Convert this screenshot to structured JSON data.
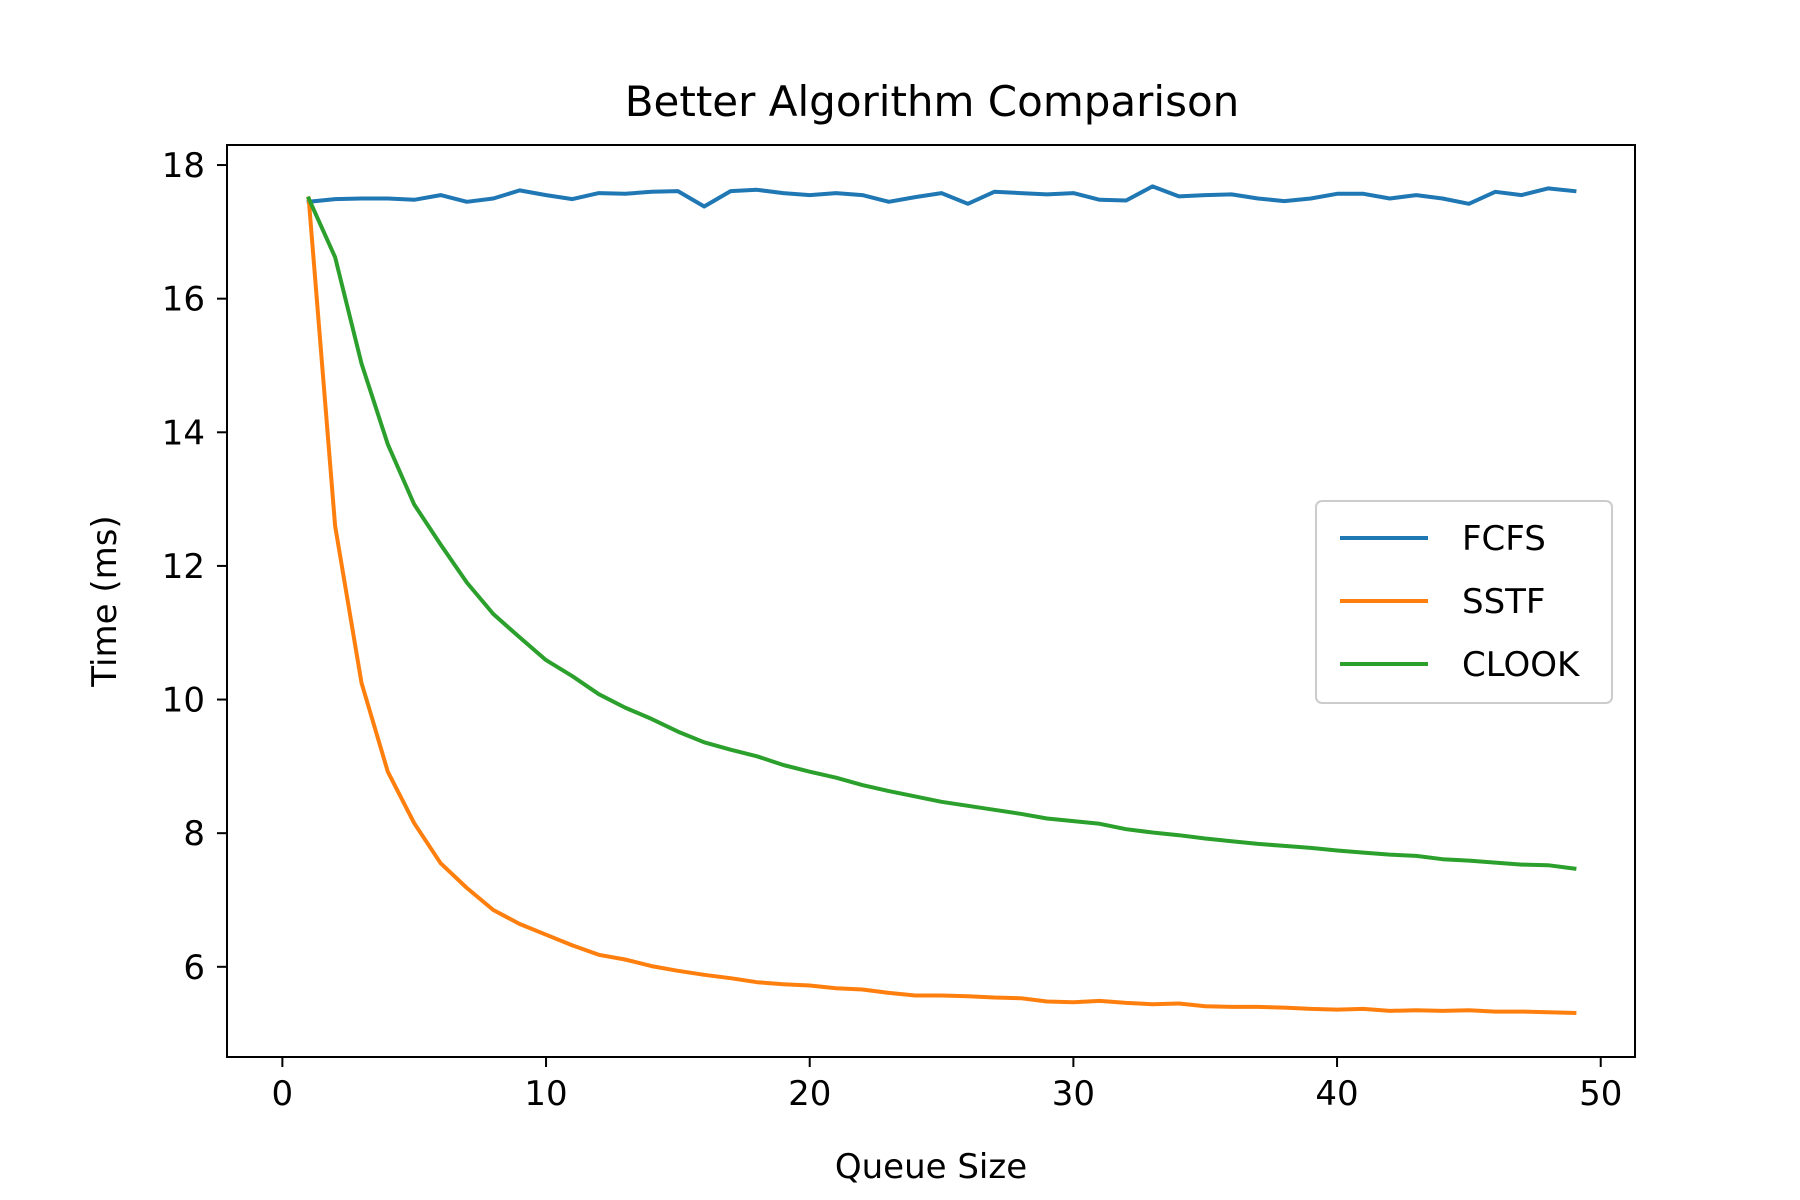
{
  "chart_data": {
    "type": "line",
    "title": "Better Algorithm Comparison",
    "xlabel": "Queue Size",
    "ylabel": "Time (ms)",
    "xlim": [
      -2.1,
      51.3
    ],
    "ylim": [
      4.65,
      18.3
    ],
    "xticks": [
      0,
      10,
      20,
      30,
      40,
      50
    ],
    "yticks": [
      6,
      8,
      10,
      12,
      14,
      16,
      18
    ],
    "grid": false,
    "legend_position": "center-right",
    "x": [
      1,
      2,
      3,
      4,
      5,
      6,
      7,
      8,
      9,
      10,
      11,
      12,
      13,
      14,
      15,
      16,
      17,
      18,
      19,
      20,
      21,
      22,
      23,
      24,
      25,
      26,
      27,
      28,
      29,
      30,
      31,
      32,
      33,
      34,
      35,
      36,
      37,
      38,
      39,
      40,
      41,
      42,
      43,
      44,
      45,
      46,
      47,
      48,
      49
    ],
    "series": [
      {
        "name": "FCFS",
        "color": "#1f77b4",
        "values": [
          17.45,
          17.49,
          17.5,
          17.5,
          17.48,
          17.55,
          17.45,
          17.5,
          17.62,
          17.55,
          17.49,
          17.58,
          17.57,
          17.6,
          17.61,
          17.38,
          17.61,
          17.63,
          17.58,
          17.55,
          17.58,
          17.55,
          17.45,
          17.52,
          17.58,
          17.42,
          17.6,
          17.58,
          17.56,
          17.58,
          17.48,
          17.47,
          17.68,
          17.53,
          17.55,
          17.56,
          17.5,
          17.46,
          17.5,
          17.57,
          17.57,
          17.5,
          17.55,
          17.5,
          17.42,
          17.6,
          17.55,
          17.65,
          17.61
        ]
      },
      {
        "name": "SSTF",
        "color": "#ff7f0e",
        "values": [
          17.5,
          12.6,
          10.25,
          8.92,
          8.15,
          7.55,
          7.18,
          6.85,
          6.64,
          6.48,
          6.32,
          6.18,
          6.11,
          6.01,
          5.94,
          5.88,
          5.83,
          5.77,
          5.74,
          5.72,
          5.68,
          5.66,
          5.61,
          5.57,
          5.57,
          5.56,
          5.54,
          5.53,
          5.48,
          5.47,
          5.49,
          5.46,
          5.44,
          5.45,
          5.41,
          5.4,
          5.4,
          5.39,
          5.37,
          5.36,
          5.37,
          5.34,
          5.35,
          5.34,
          5.35,
          5.33,
          5.33,
          5.32,
          5.31
        ]
      },
      {
        "name": "CLOOK",
        "color": "#2ca02c",
        "values": [
          17.5,
          16.62,
          15.03,
          13.82,
          12.92,
          12.32,
          11.75,
          11.28,
          10.93,
          10.59,
          10.35,
          10.08,
          9.88,
          9.71,
          9.52,
          9.36,
          9.25,
          9.15,
          9.02,
          8.92,
          8.83,
          8.72,
          8.63,
          8.55,
          8.47,
          8.41,
          8.35,
          8.29,
          8.22,
          8.18,
          8.14,
          8.06,
          8.01,
          7.97,
          7.92,
          7.88,
          7.84,
          7.81,
          7.78,
          7.74,
          7.71,
          7.68,
          7.66,
          7.61,
          7.59,
          7.56,
          7.53,
          7.52,
          7.47
        ]
      }
    ]
  }
}
